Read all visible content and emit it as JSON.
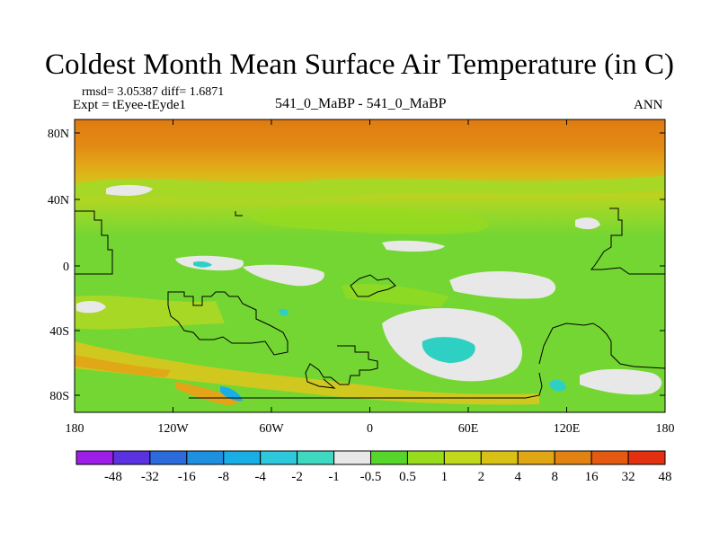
{
  "figure": {
    "title": "Coldest Month Mean Surface Air Temperature (in C)",
    "stats": "rmsd= 3.05387 diff= 1.6871",
    "experiment": "Expt = tEyee-tEyde1",
    "case": "541_0_MaBP - 541_0_MaBP",
    "season": "ANN"
  },
  "map": {
    "lat_labels": [
      "80N",
      "40N",
      "0",
      "40S",
      "80S"
    ],
    "lon_labels": [
      "180",
      "120W",
      "60W",
      "0",
      "60E",
      "120E",
      "180"
    ]
  },
  "colorbar": {
    "labels": [
      "-48",
      "-32",
      "-16",
      "-8",
      "-4",
      "-2",
      "-1",
      "-0.5",
      "0.5",
      "1",
      "2",
      "4",
      "8",
      "16",
      "32",
      "48"
    ],
    "colors": [
      "#9d1ee6",
      "#5a32e0",
      "#2b6bdc",
      "#1f8fe0",
      "#19aee6",
      "#2ec8dc",
      "#3ed9c0",
      "#e8e8e8",
      "#56d62a",
      "#98dc1e",
      "#c2d81a",
      "#d8c014",
      "#e0a614",
      "#e28212",
      "#e45a10",
      "#e23010"
    ]
  },
  "colors": {
    "polar_band": "#e07b12",
    "subpolar_band": "#e39e18",
    "mid_band": "#c9d41e",
    "tropics": "#7ed63a",
    "neutral": "#e8e8e8",
    "cold_patch": "#2fd0c4"
  }
}
